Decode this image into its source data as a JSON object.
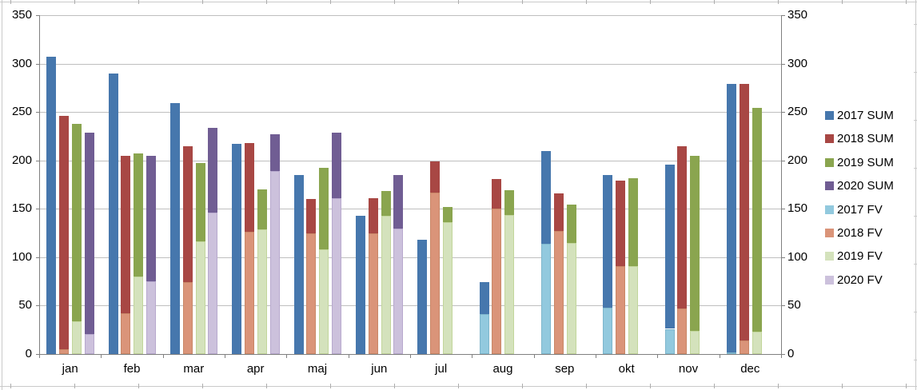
{
  "chart_data": {
    "type": "bar",
    "title": "",
    "xlabel": "",
    "ylabel": "",
    "categories": [
      "jan",
      "feb",
      "mar",
      "apr",
      "maj",
      "jun",
      "jul",
      "aug",
      "sep",
      "okt",
      "nov",
      "dec"
    ],
    "y_ticks": [
      0,
      50,
      100,
      150,
      200,
      250,
      300,
      350
    ],
    "ylim": [
      0,
      350
    ],
    "dual_axis": true,
    "grid": true,
    "legend_position": "right",
    "stacking_note": "Each year-month bar is a stack: light FV segment at bottom, dark segment on top reaching the SUM total",
    "series": [
      {
        "name": "2017 SUM",
        "kind": "total",
        "year": "2017",
        "color": "#4677AD",
        "values": [
          307,
          290,
          259,
          217,
          185,
          143,
          118,
          74,
          210,
          185,
          196,
          279
        ]
      },
      {
        "name": "2018 SUM",
        "kind": "total",
        "year": "2018",
        "color": "#A84744",
        "values": [
          246,
          205,
          215,
          218,
          160,
          161,
          199,
          181,
          166,
          179,
          215,
          279
        ]
      },
      {
        "name": "2019 SUM",
        "kind": "total",
        "year": "2019",
        "color": "#8AA54F",
        "values": [
          238,
          207,
          197,
          170,
          192,
          168,
          152,
          169,
          154,
          182,
          205,
          254
        ]
      },
      {
        "name": "2020 SUM",
        "kind": "total",
        "year": "2020",
        "color": "#705D93",
        "values": [
          229,
          205,
          234,
          227,
          229,
          185,
          null,
          null,
          null,
          null,
          null,
          null
        ]
      },
      {
        "name": "2017 FV",
        "kind": "base",
        "year": "2017",
        "color": "#92C9DE",
        "border": "#7EB6CC",
        "values": [
          0,
          0,
          0,
          0,
          0,
          0,
          0,
          41,
          114,
          48,
          26,
          2
        ]
      },
      {
        "name": "2018 FV",
        "kind": "base",
        "year": "2018",
        "color": "#DA9479",
        "border": "#C98767",
        "values": [
          5,
          42,
          74,
          126,
          125,
          125,
          167,
          150,
          127,
          91,
          47,
          14
        ]
      },
      {
        "name": "2019 FV",
        "kind": "base",
        "year": "2019",
        "color": "#D4E2BC",
        "border": "#C2D69B",
        "values": [
          34,
          80,
          116,
          129,
          108,
          143,
          136,
          144,
          115,
          91,
          24,
          23
        ]
      },
      {
        "name": "2020 FV",
        "kind": "base",
        "year": "2020",
        "color": "#CCC1DC",
        "border": "#B8A9CE",
        "values": [
          21,
          75,
          146,
          189,
          161,
          130,
          null,
          null,
          null,
          null,
          null,
          null
        ]
      }
    ]
  },
  "colors": {
    "gridline": "#BFBFBF",
    "axis": "#808080",
    "sheet_line": "#C9C9C9",
    "sheet_tick": "#ADADAD",
    "text": "#000000",
    "background": "#FFFFFF"
  }
}
